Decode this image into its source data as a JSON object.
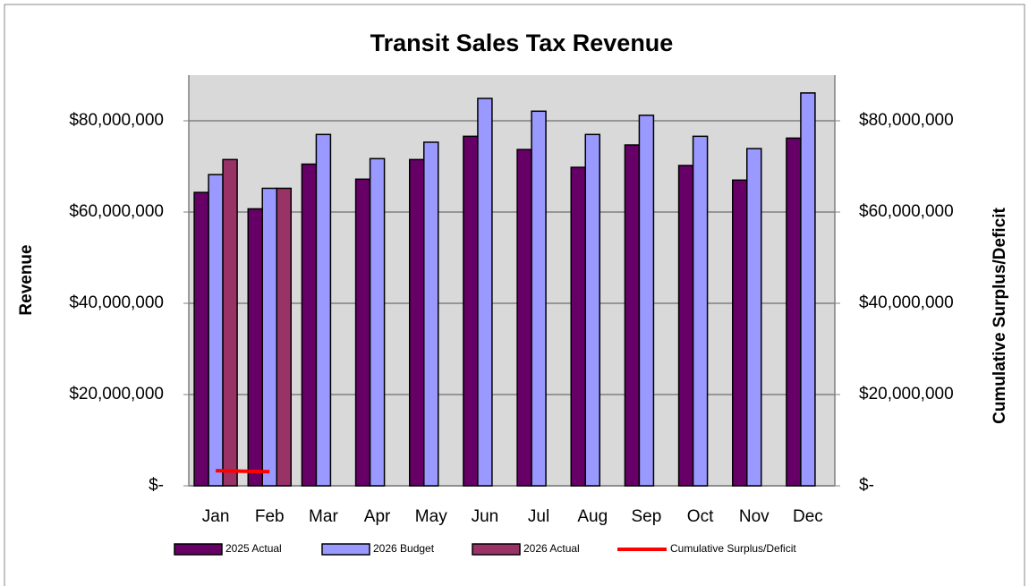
{
  "chart_data": {
    "type": "bar",
    "title": "Transit Sales Tax Revenue",
    "y_label": "Revenue",
    "y2_label": "Cumulative Surplus/Deficit",
    "categories": [
      "Jan",
      "Feb",
      "Mar",
      "Apr",
      "May",
      "Jun",
      "Jul",
      "Aug",
      "Sep",
      "Oct",
      "Nov",
      "Dec"
    ],
    "series": [
      {
        "name": "2025 Actual",
        "color": "#660066",
        "type": "bar",
        "values": [
          64300000,
          60700000,
          70500000,
          67200000,
          71500000,
          76600000,
          73700000,
          69800000,
          74700000,
          70200000,
          67000000,
          76200000
        ]
      },
      {
        "name": "2026 Budget",
        "color": "#9999ff",
        "type": "bar",
        "values": [
          68200000,
          65200000,
          77000000,
          71700000,
          75300000,
          84900000,
          82100000,
          77000000,
          81200000,
          76600000,
          73900000,
          86100000
        ]
      },
      {
        "name": "2026 Actual",
        "color": "#993366",
        "type": "bar",
        "values": [
          71500000,
          65200000,
          null,
          null,
          null,
          null,
          null,
          null,
          null,
          null,
          null,
          null
        ]
      },
      {
        "name": "Cumulative Surplus/Deficit",
        "color": "#ff0000",
        "type": "line",
        "axis": "y2",
        "values": [
          3300000,
          3100000,
          null,
          null,
          null,
          null,
          null,
          null,
          null,
          null,
          null,
          null
        ]
      }
    ],
    "ylim": [
      0,
      90000000
    ],
    "yticks": [
      {
        "value": 0,
        "label": "$-"
      },
      {
        "value": 20000000,
        "label": "$20,000,000"
      },
      {
        "value": 40000000,
        "label": "$40,000,000"
      },
      {
        "value": 60000000,
        "label": "$60,000,000"
      },
      {
        "value": 80000000,
        "label": "$80,000,000"
      }
    ],
    "y2lim": [
      0,
      90000000
    ],
    "y2ticks": [
      {
        "value": 0,
        "label": "$-"
      },
      {
        "value": 20000000,
        "label": "$20,000,000"
      },
      {
        "value": 40000000,
        "label": "$40,000,000"
      },
      {
        "value": 60000000,
        "label": "$60,000,000"
      },
      {
        "value": 80000000,
        "label": "$80,000,000"
      }
    ],
    "grid": true,
    "legend": "bottom"
  }
}
